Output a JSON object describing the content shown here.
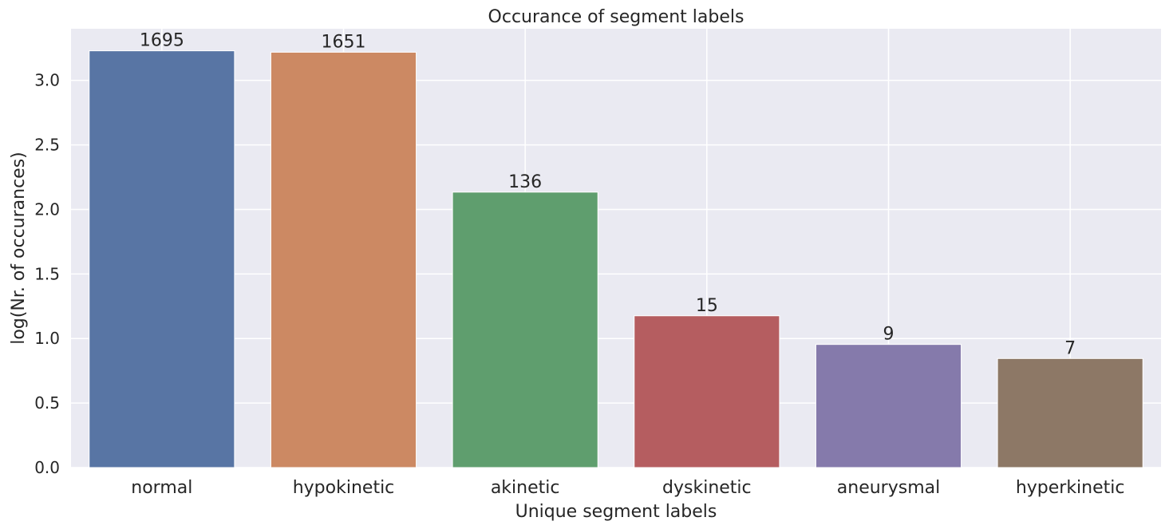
{
  "chart_data": {
    "type": "bar",
    "title": "Occurance of segment labels",
    "xlabel": "Unique segment labels",
    "ylabel": "log(Nr. of occurances)",
    "ylim": [
      0,
      3.4
    ],
    "yticks": [
      0.0,
      0.5,
      1.0,
      1.5,
      2.0,
      2.5,
      3.0
    ],
    "ytick_labels": [
      "0.0",
      "0.5",
      "1.0",
      "1.5",
      "2.0",
      "2.5",
      "3.0"
    ],
    "grid": true,
    "categories": [
      "normal",
      "hypokinetic",
      "akinetic",
      "dyskinetic",
      "aneurysmal",
      "hyperkinetic"
    ],
    "values": [
      3.229,
      3.218,
      2.134,
      1.176,
      0.954,
      0.845
    ],
    "data_labels": [
      "1695",
      "1651",
      "136",
      "15",
      "9",
      "7"
    ],
    "colors": [
      "#5875a4",
      "#cc8963",
      "#5f9e6e",
      "#b55d60",
      "#857aab",
      "#8d7866"
    ],
    "background": "#eaeaf2"
  }
}
